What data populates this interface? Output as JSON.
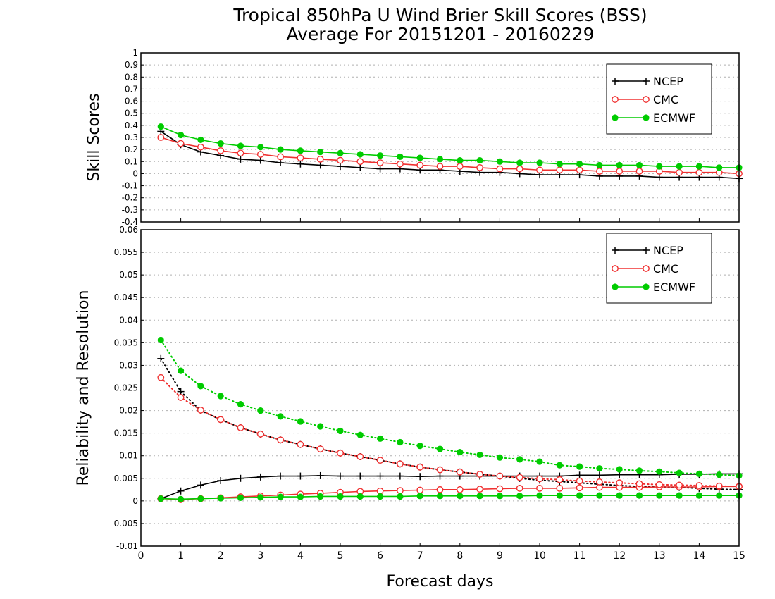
{
  "title": {
    "line1": "Tropical 850hPa U Wind Brier Skill Scores (BSS)",
    "line2": "Average For 20151201 - 20160229"
  },
  "colors": {
    "NCEP": "#000000",
    "CMC": "#f03030",
    "ECMWF": "#00cc00"
  },
  "chart_data": [
    {
      "type": "line",
      "panel": "top",
      "ylabel": "Skill Scores",
      "xlabel": "",
      "xlim": [
        0,
        15
      ],
      "ylim": [
        -0.4,
        1
      ],
      "x_ticks": [
        0,
        1,
        2,
        3,
        4,
        5,
        6,
        7,
        8,
        9,
        10,
        11,
        12,
        13,
        14,
        15
      ],
      "y_ticks": [
        "-0.4",
        "-0.3",
        "-0.2",
        "-0.1",
        "0",
        "0.1",
        "0.2",
        "0.3",
        "0.4",
        "0.5",
        "0.6",
        "0.7",
        "0.8",
        "0.9",
        "1"
      ],
      "grid": true,
      "legend": "top-right",
      "x": [
        0.5,
        1,
        1.5,
        2,
        2.5,
        3,
        3.5,
        4,
        4.5,
        5,
        5.5,
        6,
        6.5,
        7,
        7.5,
        8,
        8.5,
        9,
        9.5,
        10,
        10.5,
        11,
        11.5,
        12,
        12.5,
        13,
        13.5,
        14,
        14.5,
        15
      ],
      "series": [
        {
          "name": "NCEP",
          "marker": "plus",
          "values": [
            0.35,
            0.24,
            0.18,
            0.15,
            0.12,
            0.11,
            0.09,
            0.08,
            0.07,
            0.06,
            0.05,
            0.04,
            0.04,
            0.03,
            0.03,
            0.02,
            0.01,
            0.01,
            0.0,
            -0.01,
            -0.01,
            -0.01,
            -0.02,
            -0.02,
            -0.02,
            -0.03,
            -0.03,
            -0.03,
            -0.03,
            -0.04
          ]
        },
        {
          "name": "CMC",
          "marker": "open-circle",
          "values": [
            0.3,
            0.25,
            0.22,
            0.19,
            0.17,
            0.16,
            0.14,
            0.13,
            0.12,
            0.11,
            0.1,
            0.09,
            0.08,
            0.07,
            0.06,
            0.06,
            0.05,
            0.04,
            0.04,
            0.03,
            0.03,
            0.03,
            0.02,
            0.02,
            0.02,
            0.02,
            0.01,
            0.01,
            0.01,
            0.0
          ]
        },
        {
          "name": "ECMWF",
          "marker": "filled-circle",
          "values": [
            0.39,
            0.32,
            0.28,
            0.25,
            0.23,
            0.22,
            0.2,
            0.19,
            0.18,
            0.17,
            0.16,
            0.15,
            0.14,
            0.13,
            0.12,
            0.11,
            0.11,
            0.1,
            0.09,
            0.09,
            0.08,
            0.08,
            0.07,
            0.07,
            0.07,
            0.06,
            0.06,
            0.06,
            0.05,
            0.05
          ]
        }
      ]
    },
    {
      "type": "line",
      "panel": "bottom",
      "ylabel": "Reliability and Resolution",
      "xlabel": "Forecast days",
      "xlim": [
        0,
        15
      ],
      "ylim": [
        -0.01,
        0.06
      ],
      "x_ticks": [
        0,
        1,
        2,
        3,
        4,
        5,
        6,
        7,
        8,
        9,
        10,
        11,
        12,
        13,
        14,
        15
      ],
      "y_ticks": [
        "-0.01",
        "-0.005",
        "0",
        "0.005",
        "0.01",
        "0.015",
        "0.02",
        "0.025",
        "0.03",
        "0.035",
        "0.04",
        "0.045",
        "0.05",
        "0.055",
        "0.06"
      ],
      "grid": true,
      "legend": "top-right",
      "x": [
        0.5,
        1,
        1.5,
        2,
        2.5,
        3,
        3.5,
        4,
        4.5,
        5,
        5.5,
        6,
        6.5,
        7,
        7.5,
        8,
        8.5,
        9,
        9.5,
        10,
        10.5,
        11,
        11.5,
        12,
        12.5,
        13,
        13.5,
        14,
        14.5,
        15
      ],
      "series": [
        {
          "name": "NCEP",
          "style": "solid",
          "marker": "plus",
          "values": [
            0.0005,
            0.0022,
            0.0035,
            0.0045,
            0.005,
            0.0053,
            0.0055,
            0.0055,
            0.0056,
            0.0055,
            0.0055,
            0.0055,
            0.0055,
            0.0054,
            0.0055,
            0.0055,
            0.0055,
            0.0055,
            0.0055,
            0.0055,
            0.0055,
            0.0057,
            0.0057,
            0.0058,
            0.0058,
            0.0058,
            0.0059,
            0.0059,
            0.006,
            0.006
          ]
        },
        {
          "name": "NCEP",
          "style": "dotted",
          "marker": "plus",
          "values": [
            0.0315,
            0.0242,
            0.02,
            0.018,
            0.0162,
            0.0148,
            0.0135,
            0.0125,
            0.0115,
            0.0106,
            0.0098,
            0.009,
            0.0082,
            0.0075,
            0.0069,
            0.0064,
            0.0059,
            0.0055,
            0.005,
            0.0046,
            0.0043,
            0.004,
            0.0037,
            0.0034,
            0.0032,
            0.0031,
            0.003,
            0.0028,
            0.0026,
            0.0025
          ]
        },
        {
          "name": "CMC",
          "style": "solid",
          "marker": "open-circle",
          "values": [
            0.0005,
            0.0003,
            0.0005,
            0.0007,
            0.0009,
            0.0011,
            0.0013,
            0.0015,
            0.0017,
            0.0019,
            0.0021,
            0.0022,
            0.0023,
            0.0024,
            0.0025,
            0.0025,
            0.0026,
            0.0027,
            0.0028,
            0.0028,
            0.0028,
            0.0029,
            0.003,
            0.003,
            0.003,
            0.0031,
            0.0031,
            0.0031,
            0.0032,
            0.0032
          ]
        },
        {
          "name": "CMC",
          "style": "dotted",
          "marker": "open-circle",
          "values": [
            0.0273,
            0.0229,
            0.0201,
            0.018,
            0.0162,
            0.0148,
            0.0135,
            0.0125,
            0.0115,
            0.0106,
            0.0098,
            0.009,
            0.0082,
            0.0075,
            0.0069,
            0.0064,
            0.0059,
            0.0055,
            0.0052,
            0.0049,
            0.0047,
            0.0044,
            0.0042,
            0.004,
            0.0038,
            0.0036,
            0.0035,
            0.0034,
            0.0033,
            0.0032
          ]
        },
        {
          "name": "ECMWF",
          "style": "solid",
          "marker": "filled-circle",
          "values": [
            0.0005,
            0.0004,
            0.0005,
            0.0006,
            0.0007,
            0.0008,
            0.0009,
            0.0009,
            0.001,
            0.001,
            0.001,
            0.001,
            0.001,
            0.0011,
            0.0011,
            0.0011,
            0.0011,
            0.0011,
            0.0011,
            0.0012,
            0.0012,
            0.0012,
            0.0012,
            0.0012,
            0.0012,
            0.0012,
            0.0012,
            0.0012,
            0.0012,
            0.0012
          ]
        },
        {
          "name": "ECMWF",
          "style": "dotted",
          "marker": "filled-circle",
          "values": [
            0.0356,
            0.0288,
            0.0254,
            0.0232,
            0.0214,
            0.02,
            0.0187,
            0.0176,
            0.0165,
            0.0155,
            0.0146,
            0.0138,
            0.013,
            0.0122,
            0.0115,
            0.0108,
            0.0102,
            0.0096,
            0.0092,
            0.0087,
            0.0079,
            0.0076,
            0.0072,
            0.007,
            0.0067,
            0.0065,
            0.0062,
            0.006,
            0.0058,
            0.0056
          ]
        }
      ]
    }
  ]
}
